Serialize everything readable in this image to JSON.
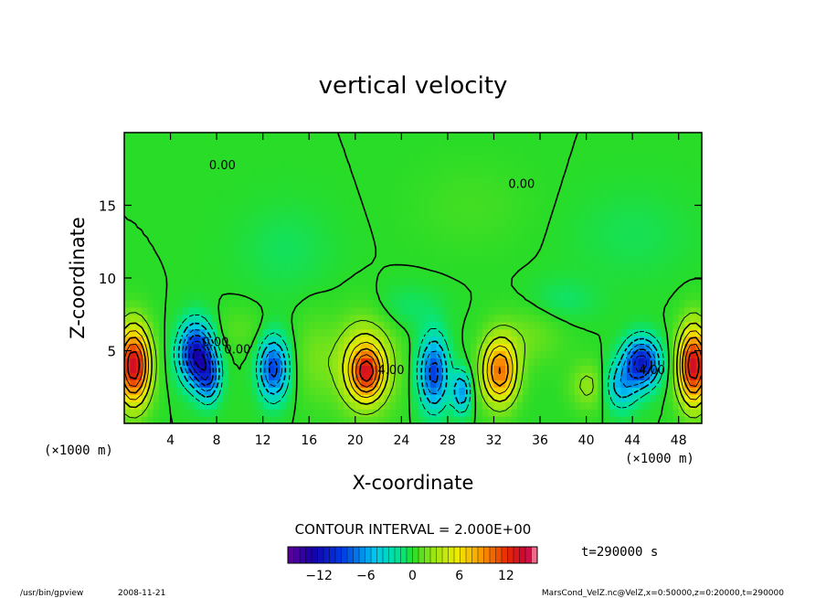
{
  "chart_data": {
    "type": "heatmap",
    "title": "vertical velocity",
    "xlabel": "X-coordinate",
    "ylabel": "Z-coordinate",
    "x_unit_left": "(×1000 m)",
    "x_unit_right": "(×1000 m)",
    "xlim": [
      0,
      50
    ],
    "ylim": [
      0,
      20
    ],
    "x_ticks": [
      4,
      8,
      12,
      16,
      20,
      24,
      28,
      32,
      36,
      40,
      44,
      48
    ],
    "y_ticks": [
      5,
      10,
      15
    ],
    "contour_interval_label": "CONTOUR INTERVAL = 2.000E+00",
    "time_label": "t=290000 s",
    "contour_labels": [
      {
        "text": "0.00",
        "x": 8.5,
        "y": 17.5
      },
      {
        "text": "0.00",
        "x": 34.4,
        "y": 16.2
      },
      {
        "text": "0.00",
        "x": 7.9,
        "y": 5.3
      },
      {
        "text": "0.00",
        "x": 9.8,
        "y": 4.8
      },
      {
        "text": "4.00",
        "x": 23.1,
        "y": 3.4
      },
      {
        "text": "4.00",
        "x": 45.7,
        "y": 3.4
      }
    ],
    "colorbar": {
      "range": [
        -16,
        16
      ],
      "ticks": [
        -12,
        -6,
        0,
        6,
        12
      ]
    },
    "cells": [
      {
        "x": 0.8,
        "z": 4.0,
        "sx": 1.4,
        "sz": 2.6,
        "v": 14
      },
      {
        "x": 49.3,
        "z": 4.0,
        "sx": 1.3,
        "sz": 2.6,
        "v": 14
      },
      {
        "x": 6.2,
        "z": 4.8,
        "sx": 1.4,
        "sz": 2.0,
        "v": -12
      },
      {
        "x": 7.3,
        "z": 3.2,
        "sx": 1.0,
        "sz": 1.6,
        "v": -7
      },
      {
        "x": 12.9,
        "z": 3.8,
        "sx": 1.2,
        "sz": 2.0,
        "v": -9
      },
      {
        "x": 20.8,
        "z": 4.0,
        "sx": 2.4,
        "sz": 3.0,
        "v": 6
      },
      {
        "x": 21.0,
        "z": 3.5,
        "sx": 1.3,
        "sz": 1.6,
        "v": 8
      },
      {
        "x": 26.8,
        "z": 3.5,
        "sx": 1.2,
        "sz": 2.4,
        "v": -9
      },
      {
        "x": 29.2,
        "z": 2.2,
        "sx": 0.8,
        "sz": 1.4,
        "v": -6
      },
      {
        "x": 32.5,
        "z": 3.6,
        "sx": 1.5,
        "sz": 2.2,
        "v": 10
      },
      {
        "x": 35.0,
        "z": 6.0,
        "sx": 3.0,
        "sz": 2.0,
        "v": 1.5
      },
      {
        "x": 40.2,
        "z": 2.6,
        "sx": 1.6,
        "sz": 1.6,
        "v": 2.5
      },
      {
        "x": 44.8,
        "z": 4.2,
        "sx": 1.5,
        "sz": 1.6,
        "v": -11
      },
      {
        "x": 43.0,
        "z": 2.6,
        "sx": 1.4,
        "sz": 1.6,
        "v": -5
      },
      {
        "x": 16.5,
        "z": 4.5,
        "sx": 1.6,
        "sz": 3.0,
        "v": 1.5
      },
      {
        "x": 10.0,
        "z": 6.5,
        "sx": 2.0,
        "sz": 1.5,
        "v": 1.0
      },
      {
        "x": 24.5,
        "z": 8.0,
        "sx": 3.0,
        "sz": 1.5,
        "v": -1.0
      },
      {
        "x": 38.0,
        "z": 8.5,
        "sx": 3.0,
        "sz": 1.5,
        "v": -1.0
      },
      {
        "x": 14.0,
        "z": 12.0,
        "sx": 4.0,
        "sz": 3.0,
        "v": -0.8
      },
      {
        "x": 30.0,
        "z": 15.0,
        "sx": 5.0,
        "sz": 3.0,
        "v": 0.6
      },
      {
        "x": 44.0,
        "z": 13.0,
        "sx": 5.0,
        "sz": 3.0,
        "v": -0.7
      }
    ]
  },
  "footer": {
    "program": "/usr/bin/gpview",
    "date": "2008-11-21",
    "source": "MarsCond_VelZ.nc@VelZ,x=0:50000,z=0:20000,t=290000"
  }
}
